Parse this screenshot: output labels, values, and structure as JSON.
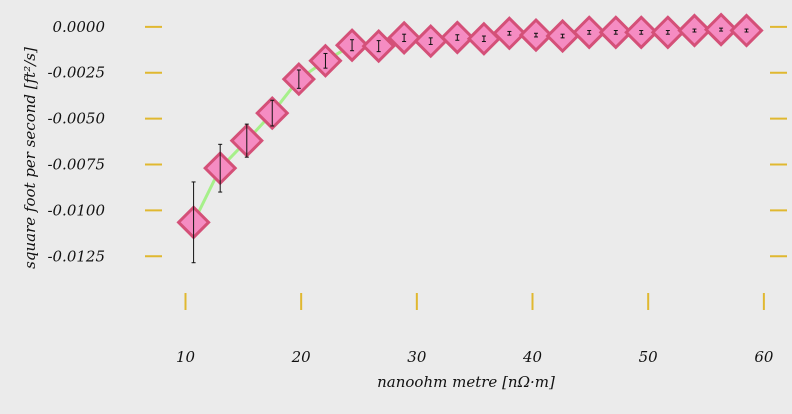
{
  "chart_data": {
    "type": "scatter",
    "xlabel": "nanoohm metre [nΩ·m]",
    "ylabel": "square foot per second [ft²/s]",
    "xlim": [
      6.5,
      62
    ],
    "ylim": [
      -0.0145,
      0.0007
    ],
    "x_ticks": [
      10,
      20,
      30,
      40,
      50,
      60
    ],
    "x_tick_labels": [
      "10",
      "20",
      "30",
      "40",
      "50",
      "60"
    ],
    "y_ticks": [
      0.0,
      -0.0025,
      -0.005,
      -0.0075,
      -0.01,
      -0.0125
    ],
    "y_tick_labels": [
      "0.0000",
      "-0.0025",
      "-0.0050",
      "-0.0075",
      "-0.0100",
      "-0.0125"
    ],
    "grid": false,
    "colors": {
      "line": "#a6f08a",
      "marker_fill": "#f58cc2",
      "marker_edge": "#d45078",
      "tick": "#e0b830",
      "error_bar": "#111111",
      "background": "#ebebeb"
    },
    "series": [
      {
        "x": [
          10.7,
          13.0,
          15.3,
          17.5,
          19.8,
          22.1,
          24.4,
          26.7,
          28.9,
          31.2,
          33.5,
          35.8,
          38.0,
          40.3,
          42.6,
          44.9,
          47.2,
          49.4,
          51.7,
          54.0,
          56.3,
          58.5
        ],
        "y": [
          -0.01065,
          -0.0077,
          -0.0062,
          -0.0047,
          -0.00285,
          -0.00185,
          -0.001,
          -0.00105,
          -0.0006,
          -0.00078,
          -0.00058,
          -0.00065,
          -0.00035,
          -0.00045,
          -0.0005,
          -0.0003,
          -0.0003,
          -0.0003,
          -0.0003,
          -0.0002,
          -0.00015,
          -0.0002
        ],
        "y_error": [
          0.0022,
          0.0013,
          0.0009,
          0.0007,
          0.0005,
          0.0004,
          0.0003,
          0.0003,
          0.0002,
          0.00018,
          0.00015,
          0.00015,
          0.0001,
          0.0001,
          0.0001,
          0.0001,
          0.0001,
          0.0001,
          0.0001,
          8e-05,
          8e-05,
          8e-05
        ]
      }
    ]
  }
}
